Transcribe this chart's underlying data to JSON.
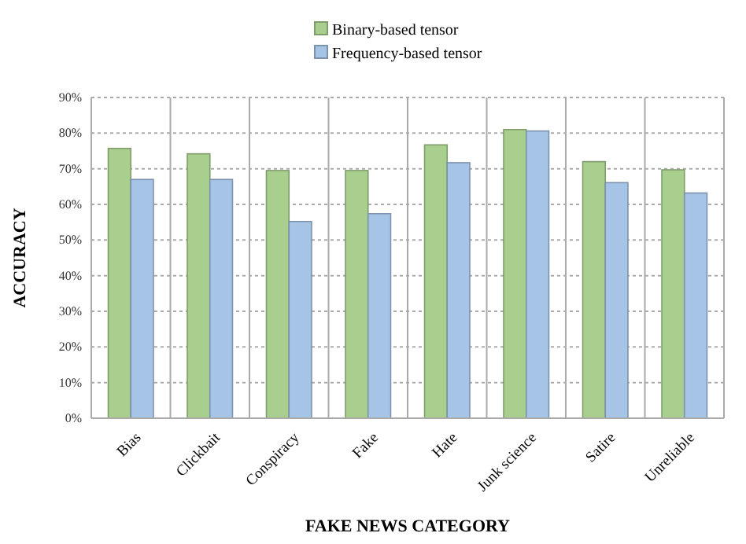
{
  "chart_data": {
    "type": "bar",
    "xlabel": "FAKE NEWS CATEGORY",
    "ylabel": "ACCURACY",
    "categories": [
      "Bias",
      "Clickbait",
      "Conspiracy",
      "Fake",
      "Hate",
      "Junk science",
      "Satire",
      "Unreliable"
    ],
    "series": [
      {
        "name": "Binary-based tensor",
        "color": "#a9cf8e",
        "values": [
          75.7,
          74.2,
          69.5,
          69.5,
          76.7,
          81.0,
          72.0,
          69.7
        ]
      },
      {
        "name": "Frequency-based tensor",
        "color": "#a6c4e6",
        "values": [
          67.0,
          67.0,
          55.2,
          57.4,
          71.7,
          80.6,
          66.1,
          63.2
        ]
      }
    ],
    "ylim": [
      0,
      90
    ],
    "yticks": [
      {
        "value": 0,
        "label": "0%"
      },
      {
        "value": 10,
        "label": "10%"
      },
      {
        "value": 20,
        "label": "20%"
      },
      {
        "value": 30,
        "label": "30%"
      },
      {
        "value": 40,
        "label": "40%"
      },
      {
        "value": 50,
        "label": "50%"
      },
      {
        "value": 60,
        "label": "60%"
      },
      {
        "value": 70,
        "label": "70%"
      },
      {
        "value": 80,
        "label": "80%"
      },
      {
        "value": 90,
        "label": "90%"
      }
    ],
    "grid": true,
    "legend": "top"
  }
}
